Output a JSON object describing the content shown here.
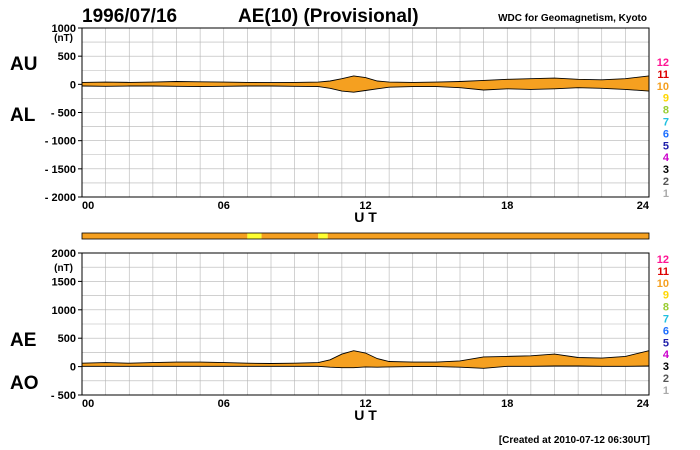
{
  "date": "1996/07/16",
  "title": "AE(10) (Provisional)",
  "source": "WDC for Geomagnetism, Kyoto",
  "footer": "[Created at 2010-07-12 06:30UT]",
  "colors": {
    "fill": "#f5a020",
    "grid": "#b4b4b4",
    "frame": "#000000",
    "ticks": "#000000",
    "bar_main": "#f5a020",
    "bar_highlight": "#ffff30"
  },
  "station_scale": [
    {
      "label": "12",
      "color": "#ff1493"
    },
    {
      "label": "11",
      "color": "#dd0000"
    },
    {
      "label": "10",
      "color": "#f5a020"
    },
    {
      "label": "9",
      "color": "#ffd700"
    },
    {
      "label": "8",
      "color": "#9acd32"
    },
    {
      "label": "7",
      "color": "#20c0e0"
    },
    {
      "label": "6",
      "color": "#1e6fff"
    },
    {
      "label": "5",
      "color": "#2020aa"
    },
    {
      "label": "4",
      "color": "#cc00cc"
    },
    {
      "label": "3",
      "color": "#000000"
    },
    {
      "label": "2",
      "color": "#555555"
    },
    {
      "label": "1",
      "color": "#aaaaaa"
    }
  ],
  "station_bar": {
    "segments": [
      {
        "from": 0,
        "to": 7.0,
        "color": "#f5a020"
      },
      {
        "from": 7.0,
        "to": 7.6,
        "color": "#ffff30"
      },
      {
        "from": 7.6,
        "to": 10.0,
        "color": "#f5a020"
      },
      {
        "from": 10.0,
        "to": 10.4,
        "color": "#ffff30"
      },
      {
        "from": 10.4,
        "to": 24,
        "color": "#f5a020"
      }
    ]
  },
  "chart_data": [
    {
      "type": "area",
      "name": "AU/AL",
      "upper_label": "AU",
      "lower_label": "AL",
      "unit": "(nT)",
      "xlabel": "U T",
      "xlim": [
        0,
        24
      ],
      "ylim": [
        -2000,
        1000
      ],
      "yticks": [
        1000,
        500,
        0,
        -500,
        -1000,
        -1500,
        -2000
      ],
      "ytick_labels": [
        "1000",
        "500",
        "0",
        "- 500",
        "- 1000",
        "- 1500",
        "- 2000"
      ],
      "xticks": [
        0,
        6,
        12,
        18,
        24
      ],
      "xtick_labels": [
        "00",
        "06",
        "12",
        "18",
        "24"
      ],
      "grid": true,
      "x": [
        0,
        1,
        2,
        3,
        4,
        5,
        6,
        7,
        8,
        9,
        10,
        10.5,
        11,
        11.5,
        12,
        12.5,
        13,
        14,
        15,
        16,
        17,
        18,
        19,
        20,
        21,
        22,
        23,
        24
      ],
      "upper": [
        35,
        40,
        35,
        40,
        50,
        45,
        40,
        35,
        30,
        35,
        40,
        60,
        100,
        150,
        120,
        60,
        40,
        35,
        40,
        50,
        70,
        90,
        100,
        110,
        90,
        80,
        100,
        150
      ],
      "lower": [
        -30,
        -35,
        -30,
        -30,
        -35,
        -40,
        -35,
        -30,
        -30,
        -35,
        -40,
        -70,
        -120,
        -140,
        -110,
        -80,
        -50,
        -40,
        -40,
        -60,
        -100,
        -80,
        -90,
        -80,
        -60,
        -70,
        -90,
        -120
      ]
    },
    {
      "type": "area",
      "name": "AE/AO",
      "upper_label": "AE",
      "lower_label": "AO",
      "unit": "(nT)",
      "xlabel": "U T",
      "xlim": [
        0,
        24
      ],
      "ylim": [
        -500,
        2000
      ],
      "yticks": [
        2000,
        1500,
        1000,
        500,
        0,
        -500
      ],
      "ytick_labels": [
        "2000",
        "1500",
        "1000",
        "500",
        "0",
        "- 500"
      ],
      "xticks": [
        0,
        6,
        12,
        18,
        24
      ],
      "xtick_labels": [
        "00",
        "06",
        "12",
        "18",
        "24"
      ],
      "grid": true,
      "x": [
        0,
        1,
        2,
        3,
        4,
        5,
        6,
        7,
        8,
        9,
        10,
        10.5,
        11,
        11.5,
        12,
        12.5,
        13,
        14,
        15,
        16,
        17,
        18,
        19,
        20,
        21,
        22,
        23,
        24
      ],
      "upper": [
        60,
        70,
        60,
        70,
        80,
        80,
        70,
        60,
        55,
        60,
        70,
        120,
        220,
        280,
        240,
        140,
        90,
        80,
        80,
        100,
        170,
        180,
        190,
        220,
        160,
        150,
        180,
        280
      ],
      "lower": [
        5,
        5,
        5,
        5,
        5,
        5,
        5,
        5,
        5,
        5,
        5,
        -10,
        -20,
        -20,
        -5,
        -10,
        -5,
        0,
        0,
        -10,
        -30,
        5,
        5,
        10,
        10,
        5,
        5,
        10
      ]
    }
  ]
}
